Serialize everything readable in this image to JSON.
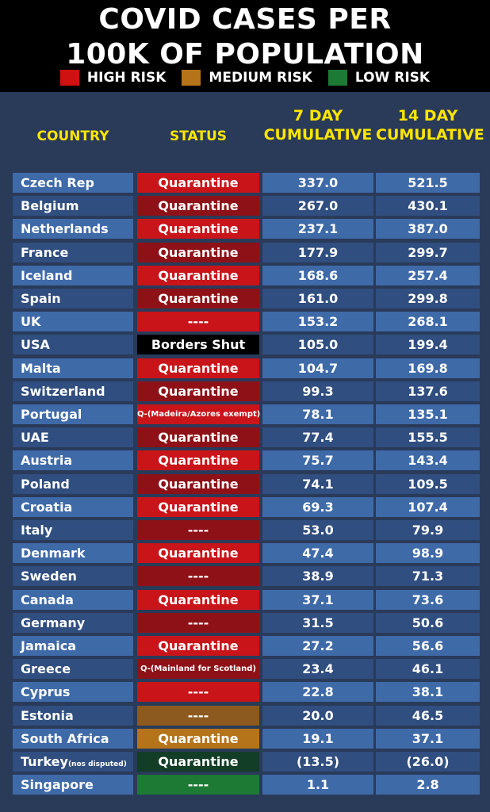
{
  "title_line1": "COVID CASES PER",
  "title_line2": "100K OF POPULATION",
  "legend": [
    {
      "label": "HIGH RISK",
      "color": "#d01111"
    },
    {
      "label": "MEDIUM RISK",
      "color": "#b5741a"
    },
    {
      "label": "LOW RISK",
      "color": "#1d7a35"
    }
  ],
  "headers": {
    "country": "COUNTRY",
    "status": "STATUS",
    "seven_day_1": "7 DAY",
    "seven_day_2": "CUMULATIVE",
    "fourteen_day_1": "14 DAY",
    "fourteen_day_2": "CUMULATIVE"
  },
  "rows": [
    {
      "country": "Czech Rep",
      "note": "",
      "status": "Quarantine",
      "status_color": "#c9141a",
      "small": false,
      "v7": "337.0",
      "v14": "521.5"
    },
    {
      "country": "Belgium",
      "note": "",
      "status": "Quarantine",
      "status_color": "#8f1118",
      "small": false,
      "v7": "267.0",
      "v14": "430.1"
    },
    {
      "country": "Netherlands",
      "note": "",
      "status": "Quarantine",
      "status_color": "#c9141a",
      "small": false,
      "v7": "237.1",
      "v14": "387.0"
    },
    {
      "country": "France",
      "note": "",
      "status": "Quarantine",
      "status_color": "#8f1118",
      "small": false,
      "v7": "177.9",
      "v14": "299.7"
    },
    {
      "country": "Iceland",
      "note": "",
      "status": "Quarantine",
      "status_color": "#c9141a",
      "small": false,
      "v7": "168.6",
      "v14": "257.4"
    },
    {
      "country": "Spain",
      "note": "",
      "status": "Quarantine",
      "status_color": "#8f1118",
      "small": false,
      "v7": "161.0",
      "v14": "299.8"
    },
    {
      "country": "UK",
      "note": "",
      "status": "----",
      "status_color": "#c9141a",
      "small": false,
      "v7": "153.2",
      "v14": "268.1"
    },
    {
      "country": "USA",
      "note": "",
      "status": "Borders Shut",
      "status_color": "#000000",
      "small": false,
      "v7": "105.0",
      "v14": "199.4"
    },
    {
      "country": "Malta",
      "note": "",
      "status": "Quarantine",
      "status_color": "#c9141a",
      "small": false,
      "v7": "104.7",
      "v14": "169.8"
    },
    {
      "country": "Switzerland",
      "note": "",
      "status": "Quarantine",
      "status_color": "#8f1118",
      "small": false,
      "v7": "99.3",
      "v14": "137.6"
    },
    {
      "country": "Portugal",
      "note": "",
      "status": "Q-(Madeira/Azores exempt)",
      "status_color": "#c9141a",
      "small": true,
      "v7": "78.1",
      "v14": "135.1"
    },
    {
      "country": "UAE",
      "note": "",
      "status": "Quarantine",
      "status_color": "#8f1118",
      "small": false,
      "v7": "77.4",
      "v14": "155.5"
    },
    {
      "country": "Austria",
      "note": "",
      "status": "Quarantine",
      "status_color": "#c9141a",
      "small": false,
      "v7": "75.7",
      "v14": "143.4"
    },
    {
      "country": "Poland",
      "note": "",
      "status": "Quarantine",
      "status_color": "#8f1118",
      "small": false,
      "v7": "74.1",
      "v14": "109.5"
    },
    {
      "country": "Croatia",
      "note": "",
      "status": "Quarantine",
      "status_color": "#c9141a",
      "small": false,
      "v7": "69.3",
      "v14": "107.4"
    },
    {
      "country": "Italy",
      "note": "",
      "status": "----",
      "status_color": "#8f1118",
      "small": false,
      "v7": "53.0",
      "v14": "79.9"
    },
    {
      "country": "Denmark",
      "note": "",
      "status": "Quarantine",
      "status_color": "#c9141a",
      "small": false,
      "v7": "47.4",
      "v14": "98.9"
    },
    {
      "country": "Sweden",
      "note": "",
      "status": "----",
      "status_color": "#8f1118",
      "small": false,
      "v7": "38.9",
      "v14": "71.3"
    },
    {
      "country": "Canada",
      "note": "",
      "status": "Quarantine",
      "status_color": "#c9141a",
      "small": false,
      "v7": "37.1",
      "v14": "73.6"
    },
    {
      "country": "Germany",
      "note": "",
      "status": "----",
      "status_color": "#8f1118",
      "small": false,
      "v7": "31.5",
      "v14": "50.6"
    },
    {
      "country": "Jamaica",
      "note": "",
      "status": "Quarantine",
      "status_color": "#c9141a",
      "small": false,
      "v7": "27.2",
      "v14": "56.6"
    },
    {
      "country": "Greece",
      "note": "",
      "status": "Q-(Mainland for Scotland)",
      "status_color": "#8f1118",
      "small": true,
      "v7": "23.4",
      "v14": "46.1"
    },
    {
      "country": "Cyprus",
      "note": "",
      "status": "----",
      "status_color": "#c9141a",
      "small": false,
      "v7": "22.8",
      "v14": "38.1"
    },
    {
      "country": "Estonia",
      "note": "",
      "status": "----",
      "status_color": "#8c5a1f",
      "small": false,
      "v7": "20.0",
      "v14": "46.5"
    },
    {
      "country": "South Africa",
      "note": "",
      "status": "Quarantine",
      "status_color": "#b5741a",
      "small": false,
      "v7": "19.1",
      "v14": "37.1"
    },
    {
      "country": "Turkey",
      "note": "(nos disputed)",
      "status": "Quarantine",
      "status_color": "#123d26",
      "small": false,
      "v7": "(13.5)",
      "v14": "(26.0)"
    },
    {
      "country": "Singapore",
      "note": "",
      "status": "----",
      "status_color": "#1d7a35",
      "small": false,
      "v7": "1.1",
      "v14": "2.8"
    }
  ]
}
